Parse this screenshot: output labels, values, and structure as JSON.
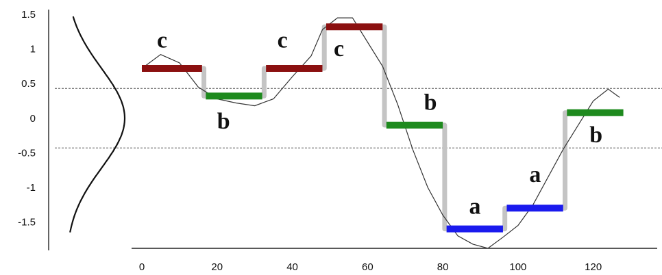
{
  "chart_data": {
    "type": "line",
    "title": "",
    "xlabel": "",
    "ylabel": "",
    "xlim": [
      0,
      137
    ],
    "ylim": [
      -1.9,
      1.55
    ],
    "x_ticks": [
      0,
      20,
      40,
      60,
      80,
      100,
      120
    ],
    "y_ticks": [
      1.5,
      1,
      0.5,
      0,
      -0.5,
      -1,
      -1.5
    ],
    "y_tick_labels": [
      "1.5",
      "1",
      "0.5",
      "0",
      "-0.5",
      "-1",
      "-1.5"
    ],
    "grid": false,
    "breakpoints": [
      0.43,
      -0.43
    ],
    "colors": {
      "a": "#1a1aee",
      "b": "#1e8a1e",
      "c": "#8b1010",
      "transition": "#c4c4c4",
      "series": "#333333"
    },
    "series": [
      {
        "type": "line",
        "x": [
          0,
          5,
          10,
          15,
          20,
          25,
          30,
          35,
          40,
          45,
          48,
          52,
          56,
          60,
          64,
          68,
          72,
          76,
          80,
          84,
          88,
          92,
          96,
          100,
          104,
          108,
          112,
          116,
          120,
          124,
          127
        ],
        "values": [
          0.72,
          0.92,
          0.8,
          0.45,
          0.28,
          0.22,
          0.18,
          0.28,
          0.6,
          0.9,
          1.28,
          1.45,
          1.45,
          1.1,
          0.75,
          0.2,
          -0.45,
          -1.0,
          -1.4,
          -1.7,
          -1.82,
          -1.88,
          -1.72,
          -1.55,
          -1.25,
          -0.85,
          -0.45,
          -0.1,
          0.25,
          0.42,
          0.3
        ]
      }
    ],
    "segments": [
      {
        "x": [
          0,
          16
        ],
        "y": 0.72,
        "symbol": "c"
      },
      {
        "x": [
          17,
          32
        ],
        "y": 0.32,
        "symbol": "b"
      },
      {
        "x": [
          33,
          48
        ],
        "y": 0.72,
        "symbol": "c"
      },
      {
        "x": [
          49,
          64
        ],
        "y": 1.32,
        "symbol": "c"
      },
      {
        "x": [
          65,
          80
        ],
        "y": -0.1,
        "symbol": "b"
      },
      {
        "x": [
          81,
          96
        ],
        "y": -1.6,
        "symbol": "a"
      },
      {
        "x": [
          97,
          112
        ],
        "y": -1.3,
        "symbol": "a"
      },
      {
        "x": [
          113,
          128
        ],
        "y": 0.08,
        "symbol": "b"
      }
    ],
    "labels": [
      {
        "text": "c",
        "x": 4,
        "y": 1.02
      },
      {
        "text": "b",
        "x": 20,
        "y": -0.15
      },
      {
        "text": "c",
        "x": 36,
        "y": 1.02
      },
      {
        "text": "c",
        "x": 51,
        "y": 0.9
      },
      {
        "text": "b",
        "x": 75,
        "y": 0.12
      },
      {
        "text": "a",
        "x": 87,
        "y": -1.38
      },
      {
        "text": "a",
        "x": 103,
        "y": -0.92
      },
      {
        "text": "b",
        "x": 119,
        "y": -0.35
      }
    ],
    "gaussian": {
      "mean": 0,
      "sd": 0.72
    }
  }
}
